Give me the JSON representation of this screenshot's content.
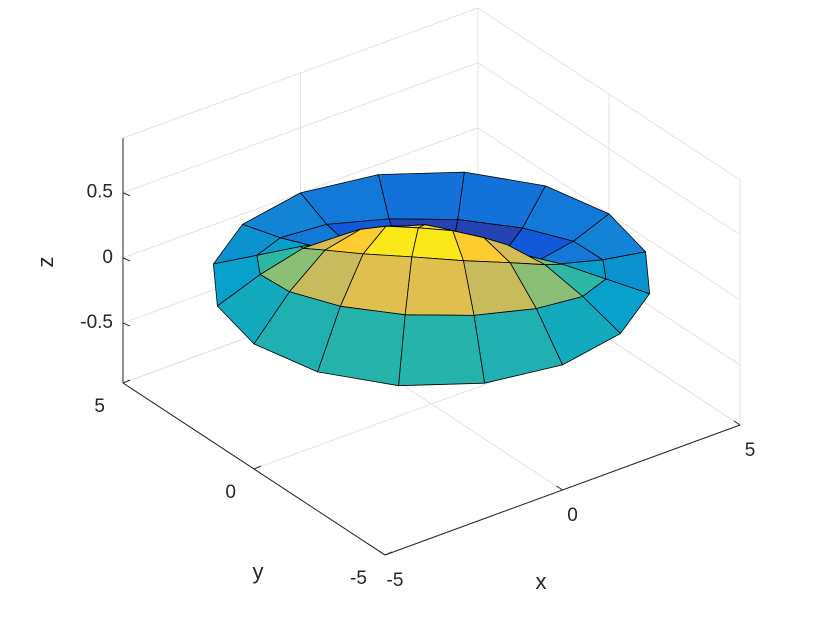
{
  "chart_data": {
    "type": "surface",
    "x_label": "x",
    "y_label": "y",
    "z_label": "z",
    "r": [
      0,
      1,
      2,
      3,
      4,
      5
    ],
    "theta": [
      0,
      22.5,
      45,
      67.5,
      90,
      112.5,
      135,
      157.5,
      180,
      202.5,
      225,
      247.5,
      270,
      292.5,
      315,
      337.5
    ],
    "z": [
      [
        0.3,
        0.3,
        0.3,
        0.3,
        0.3,
        0.3,
        0.3,
        0.3,
        0.3,
        0.3,
        0.3,
        0.3,
        0.3,
        0.3,
        0.3,
        0.3
      ],
      [
        0.08,
        0.02,
        -0.01,
        0.02,
        0.08,
        0.17,
        0.29,
        0.4,
        0.49,
        0.55,
        0.58,
        0.55,
        0.49,
        0.4,
        0.29,
        0.17
      ],
      [
        -0.1,
        -0.2,
        -0.24,
        -0.2,
        -0.1,
        0.06,
        0.24,
        0.43,
        0.58,
        0.69,
        0.72,
        0.69,
        0.58,
        0.43,
        0.24,
        0.06
      ],
      [
        -0.16,
        -0.27,
        -0.3,
        -0.27,
        -0.16,
        -0.01,
        0.18,
        0.36,
        0.52,
        0.62,
        0.66,
        0.62,
        0.52,
        0.36,
        0.18,
        -0.01
      ],
      [
        -0.11,
        -0.18,
        -0.2,
        -0.18,
        -0.11,
        -0.02,
        0.09,
        0.2,
        0.3,
        0.36,
        0.38,
        0.36,
        0.3,
        0.2,
        0.09,
        -0.02
      ],
      [
        0,
        0,
        0,
        0,
        0,
        0,
        0,
        0,
        0,
        0,
        0,
        0,
        0,
        0,
        0,
        0
      ]
    ],
    "xlim": [
      -5,
      5
    ],
    "ylim": [
      -5,
      5
    ],
    "zlim": [
      -0.96,
      0.92
    ],
    "xticks": [
      -5,
      0,
      5
    ],
    "yticks": [
      -5,
      0,
      5
    ],
    "zticks": [
      -0.5,
      0,
      0.5
    ],
    "grid": true,
    "colormap": [
      "#352a87",
      "#0f5cdd",
      "#1481d6",
      "#06a4ca",
      "#2eb7a4",
      "#87bf77",
      "#d1bb59",
      "#fec832",
      "#f9fb0e"
    ],
    "edge_color": "#000000"
  }
}
